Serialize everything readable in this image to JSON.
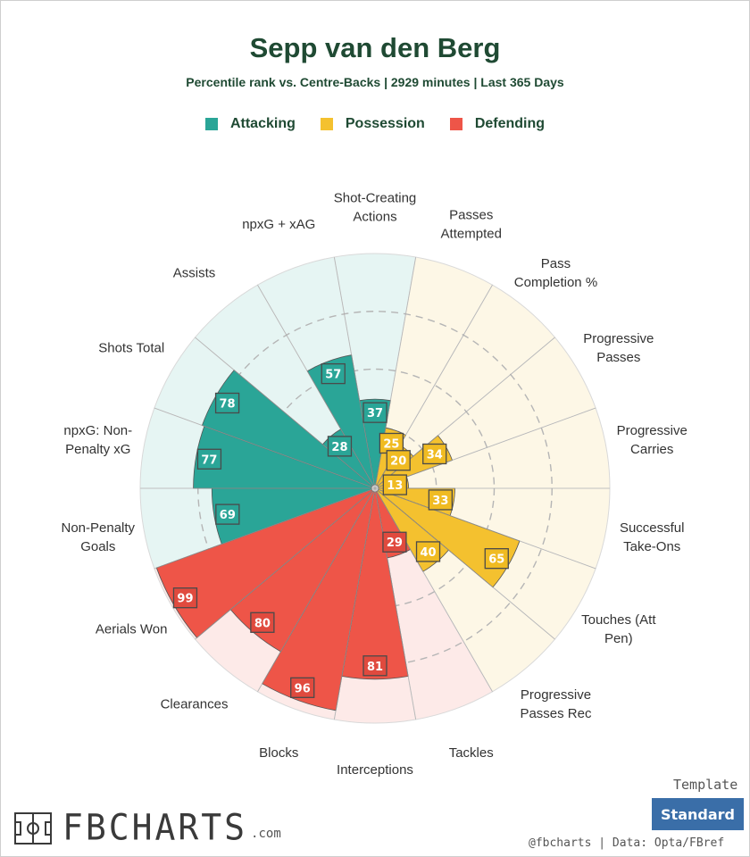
{
  "header": {
    "title": "Sepp van den Berg",
    "subtitle": "Percentile rank vs. Centre-Backs | 2929 minutes | Last 365 Days"
  },
  "legend": [
    {
      "label": "Attacking",
      "color": "#2aa597"
    },
    {
      "label": "Possession",
      "color": "#f4c12f"
    },
    {
      "label": "Defending",
      "color": "#ee5548"
    }
  ],
  "chart_data": {
    "type": "polar-bar",
    "range": [
      0,
      100
    ],
    "categories": [
      "Shot-Creating Actions",
      "Passes Attempted",
      "Pass Completion %",
      "Progressive Passes",
      "Progressive Carries",
      "Successful Take-Ons",
      "Touches (Att Pen)",
      "Progressive Passes Rec",
      "Tackles",
      "Interceptions",
      "Blocks",
      "Clearances",
      "Aerials Won",
      "Non-Penalty Goals",
      "npxG: Non-Penalty xG",
      "Shots Total",
      "Assists",
      "npxG + xAG"
    ],
    "values": [
      37,
      25,
      20,
      34,
      13,
      33,
      65,
      40,
      29,
      81,
      96,
      80,
      99,
      69,
      77,
      78,
      28,
      57
    ],
    "groups": [
      "Attacking",
      "Possession",
      "Possession",
      "Possession",
      "Possession",
      "Possession",
      "Possession",
      "Possession",
      "Defending",
      "Defending",
      "Defending",
      "Defending",
      "Defending",
      "Attacking",
      "Attacking",
      "Attacking",
      "Attacking",
      "Attacking"
    ],
    "colors": {
      "Attacking": {
        "fill": "#2aa597",
        "background": "#e6f5f3",
        "label": "#2aa597"
      },
      "Possession": {
        "fill": "#f4c12f",
        "background": "#fdf7e6",
        "label": "#f0bb22"
      },
      "Defending": {
        "fill": "#ee5548",
        "background": "#fdeae8",
        "label": "#e04a3e"
      }
    },
    "gridlines": "dashed"
  },
  "footer": {
    "logo_text": "FBCHARTS",
    "logo_suffix": ".com",
    "template_label": "Template",
    "template_value": "Standard",
    "credit": "@fbcharts | Data: Opta/FBref"
  }
}
